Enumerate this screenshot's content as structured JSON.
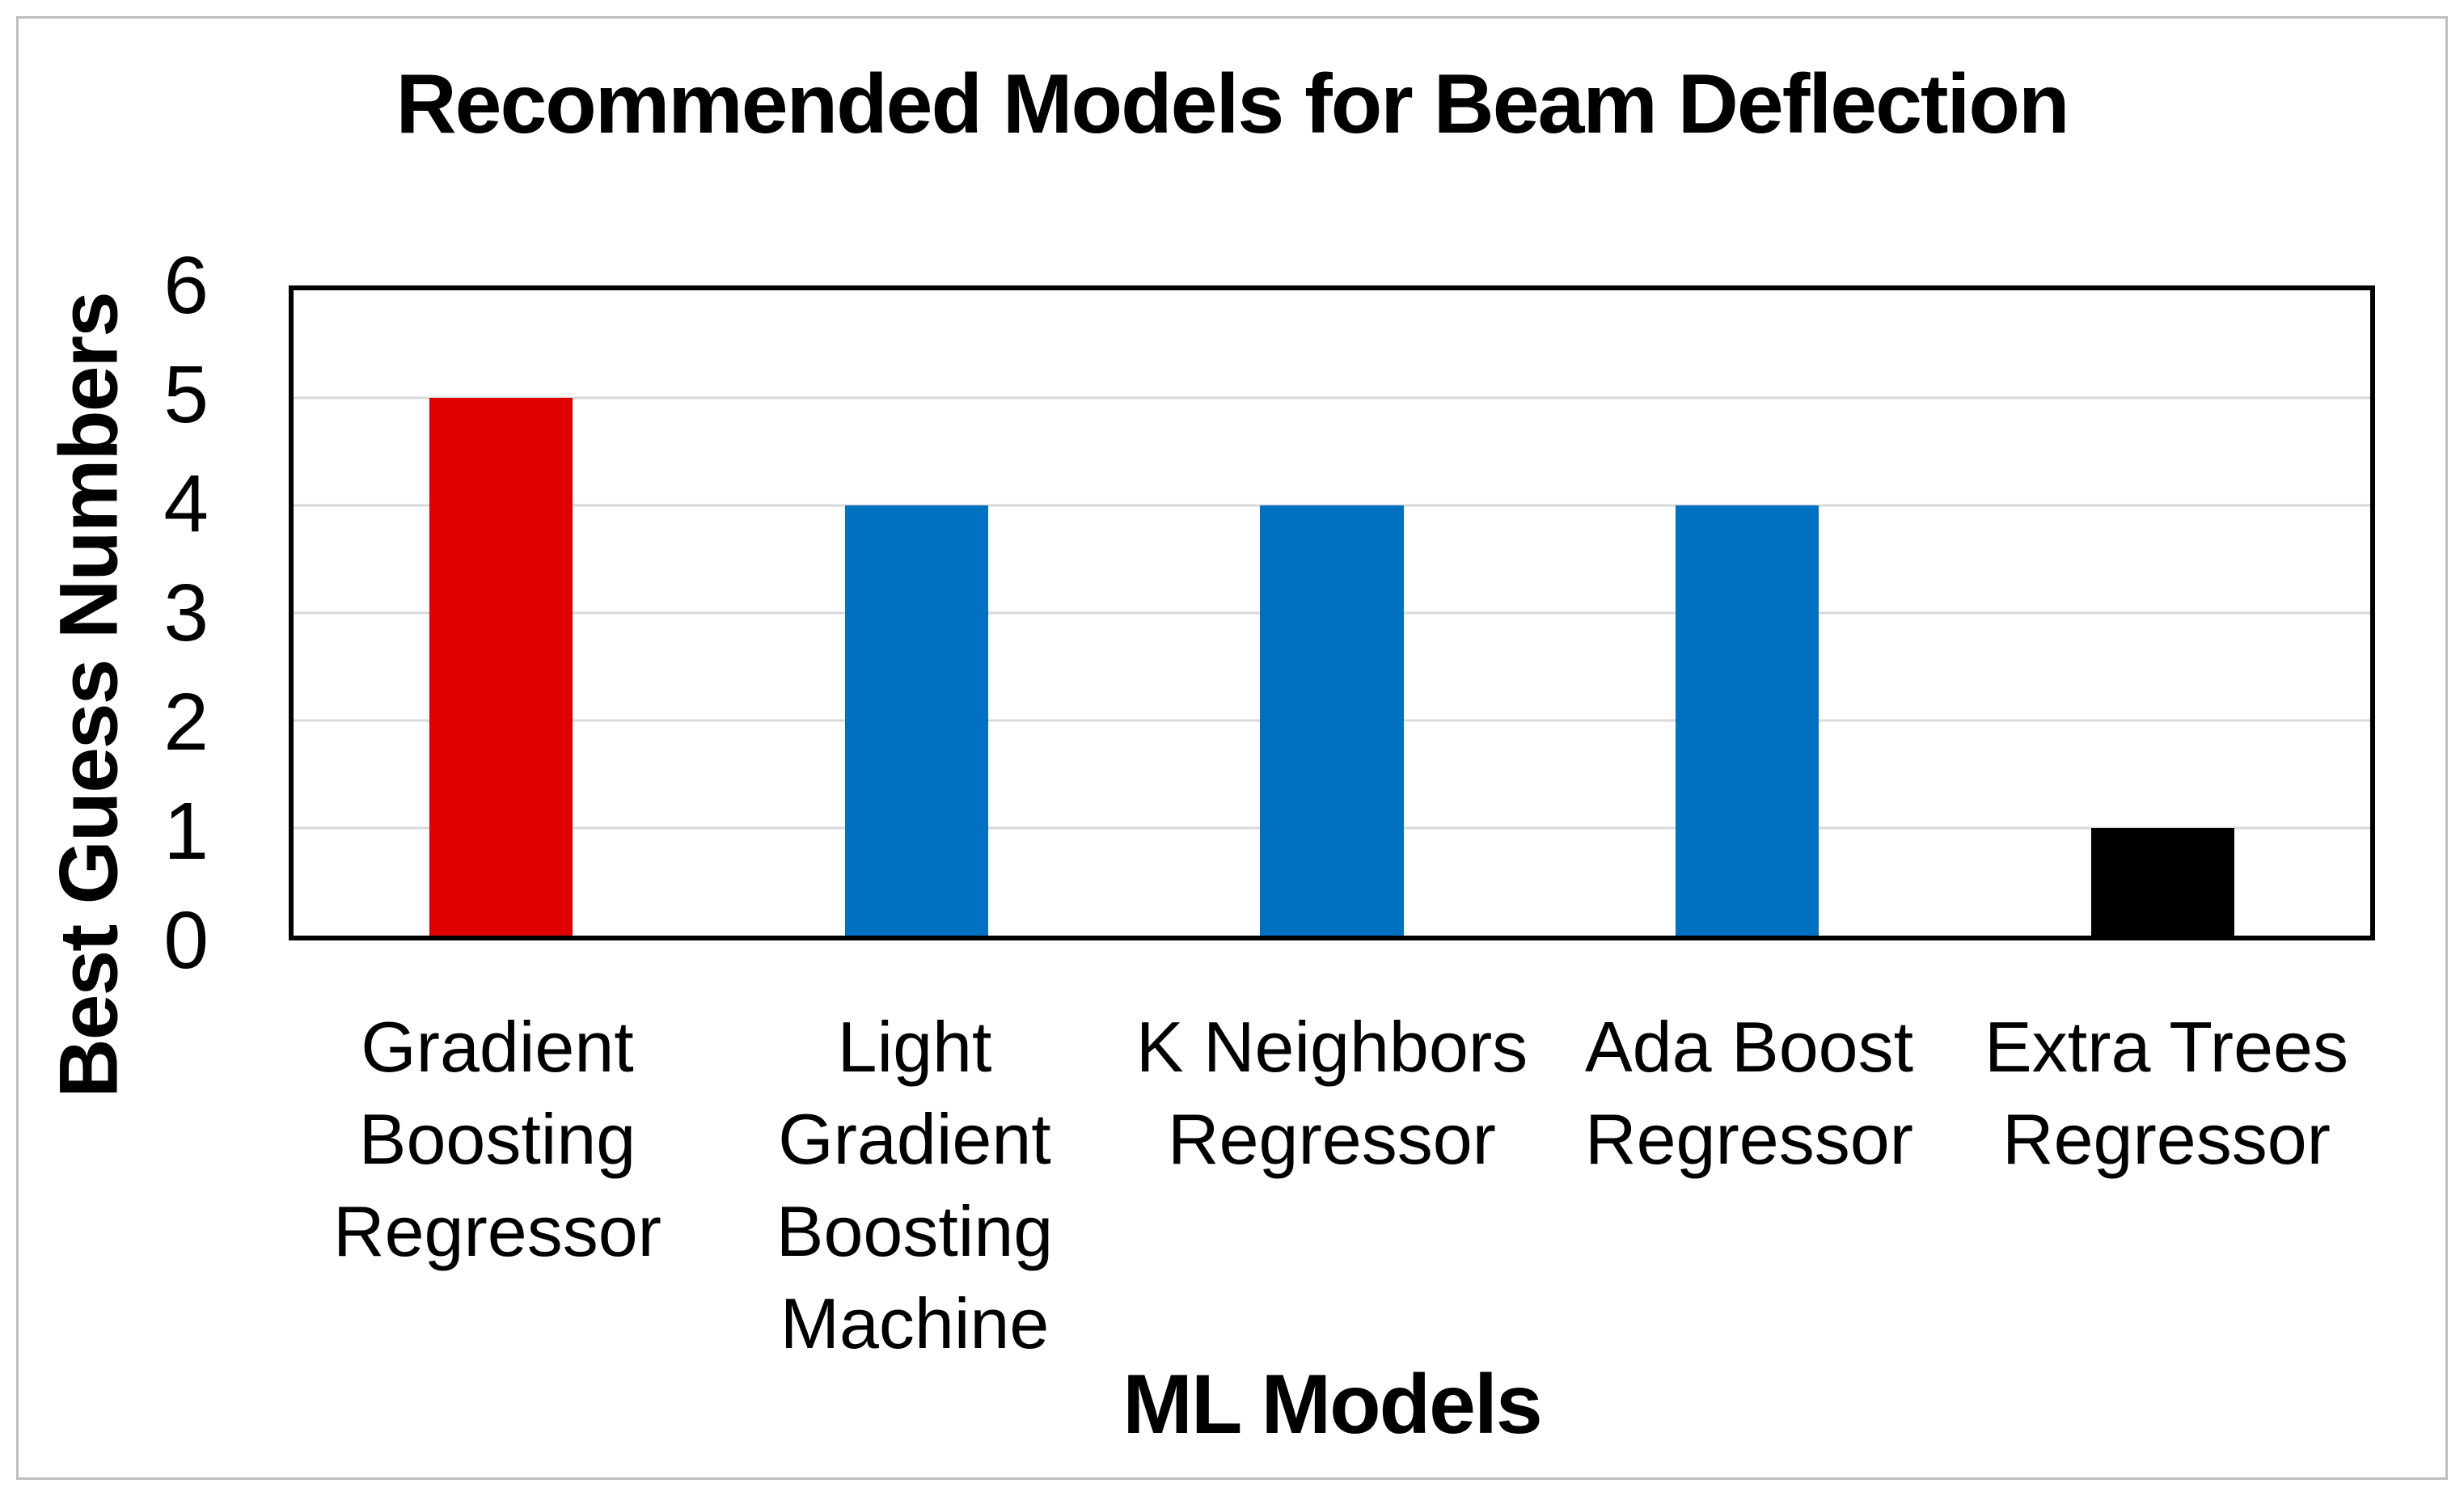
{
  "chart_data": {
    "type": "bar",
    "title": "Recommended Models for Beam Deflection",
    "xlabel": "ML Models",
    "ylabel": "Best Guess Numbers",
    "categories": [
      "Gradient\nBoosting\nRegressor",
      "Light\nGradient\nBoosting\nMachine",
      "K Neighbors\nRegressor",
      "Ada Boost\nRegressor",
      "Extra Trees\nRegressor"
    ],
    "values": [
      5,
      4,
      4,
      4,
      1
    ],
    "bar_colors": [
      "#E00000",
      "#0071C1",
      "#0071C1",
      "#0071C1",
      "#000000"
    ],
    "ylim": [
      0,
      6
    ],
    "yticks": [
      6,
      5,
      4,
      3,
      2,
      1,
      0
    ],
    "gridline_values": [
      1,
      2,
      3,
      4,
      5
    ],
    "grid": "horizontal",
    "legend": "none",
    "gridline_color": "#D9D9D9",
    "frame_color": "#000000",
    "figure_border_color": "#BFBFBF"
  }
}
